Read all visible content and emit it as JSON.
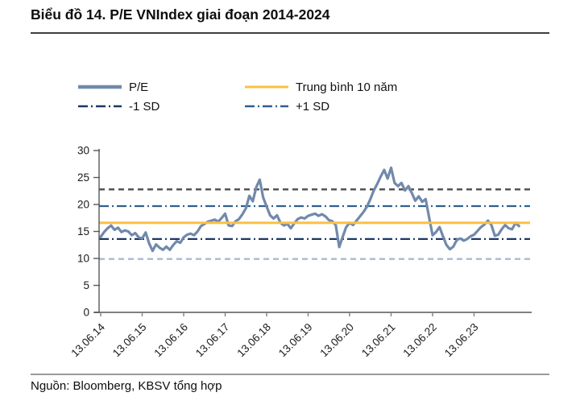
{
  "header": {
    "title": "Biểu đồ 14. P/E VNIndex giai đoạn 2014-2024"
  },
  "footer": {
    "source": "Nguồn: Bloomberg, KBSV tổng hợp"
  },
  "legend": {
    "items": [
      {
        "id": "pe",
        "label": "P/E",
        "color": "#7189AC",
        "style": "solid",
        "weight": 4.5
      },
      {
        "id": "mean",
        "label": "Trung bình 10 năm",
        "color": "#FBC043",
        "style": "solid",
        "weight": 3
      },
      {
        "id": "minus1sd",
        "label": "-1 SD",
        "color": "#1F3864",
        "style": "dash-dot",
        "weight": 2.4
      },
      {
        "id": "plus1sd",
        "label": "+1 SD",
        "color": "#2F608F",
        "style": "dash-dot",
        "weight": 2.4
      }
    ]
  },
  "chart_data": {
    "type": "line",
    "title": "P/E VNIndex giai đoạn 2014-2024",
    "xlabel": "",
    "ylabel": "",
    "ylim": [
      0,
      30
    ],
    "y_ticks": [
      0,
      5,
      10,
      15,
      20,
      25,
      30
    ],
    "x_tick_labels": [
      "13.06.14",
      "13.06.15",
      "13.06.16",
      "13.06.17",
      "13.06.18",
      "13.06.19",
      "13.06.20",
      "13.06.21",
      "13.06.22",
      "13.06.23"
    ],
    "grid": false,
    "legend_position": "top",
    "series": [
      {
        "name": "P/E",
        "color": "#7189AC",
        "style": "solid",
        "start": "13.06.14",
        "interval": "monthly",
        "values": [
          14.0,
          14.9,
          15.6,
          16.1,
          15.3,
          15.7,
          14.9,
          15.2,
          15.0,
          14.3,
          14.7,
          13.9,
          13.7,
          14.8,
          12.8,
          11.4,
          12.6,
          12.0,
          11.6,
          12.2,
          11.6,
          12.5,
          13.2,
          12.9,
          13.9,
          14.4,
          14.6,
          14.3,
          15.0,
          16.0,
          16.4,
          16.8,
          17.0,
          17.2,
          16.8,
          17.5,
          18.3,
          16.1,
          16.0,
          16.9,
          17.3,
          18.2,
          19.3,
          21.6,
          20.6,
          23.2,
          24.6,
          21.3,
          19.6,
          18.0,
          17.4,
          18.0,
          16.6,
          16.1,
          16.4,
          15.6,
          16.5,
          17.3,
          17.6,
          17.4,
          17.9,
          18.1,
          18.3,
          17.9,
          18.2,
          17.8,
          17.1,
          16.9,
          16.2,
          12.1,
          14.0,
          15.8,
          16.6,
          16.2,
          17.0,
          17.8,
          18.6,
          19.6,
          21.0,
          22.6,
          23.8,
          25.2,
          26.4,
          24.8,
          26.8,
          24.0,
          23.4,
          24.0,
          22.6,
          23.4,
          22.1,
          20.7,
          21.5,
          20.5,
          21.0,
          17.6,
          14.3,
          14.9,
          15.8,
          14.1,
          12.5,
          11.7,
          12.2,
          13.4,
          13.7,
          13.3,
          13.6,
          14.1,
          14.4,
          15.1,
          15.8,
          16.3,
          17.0,
          16.2,
          14.2,
          14.4,
          15.4,
          16.2,
          15.6,
          15.4,
          16.6,
          16.0
        ]
      }
    ],
    "reference_lines": [
      {
        "name": "Trung bình 10 năm",
        "value": 16.6,
        "color": "#FBC043",
        "style": "solid",
        "in_legend": true
      },
      {
        "name": "+1 SD",
        "value": 19.7,
        "color": "#2F608F",
        "style": "dash-dot",
        "in_legend": true
      },
      {
        "name": "-1 SD",
        "value": 13.6,
        "color": "#1F3864",
        "style": "dash-dot",
        "in_legend": true
      },
      {
        "name": "upper dashed band",
        "value": 22.8,
        "color": "#545454",
        "style": "dashed",
        "in_legend": false
      },
      {
        "name": "lower dashed band",
        "value": 9.9,
        "color": "#A9BAD3",
        "style": "dashed",
        "in_legend": false
      }
    ]
  }
}
